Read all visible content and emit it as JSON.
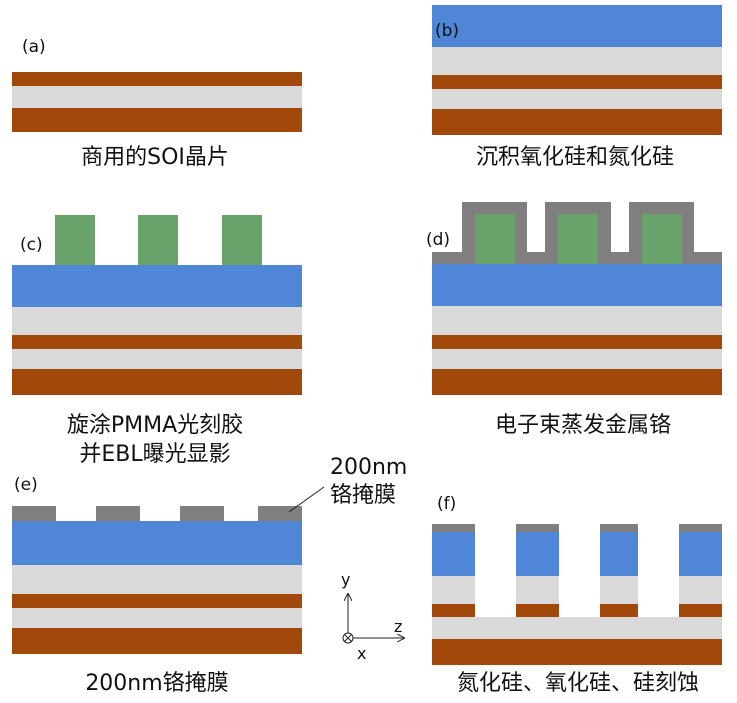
{
  "colors": {
    "silicon": "#a0490b",
    "oxide": "#d9d9d9",
    "nitride": "#4f87d6",
    "resist": "#69a26b",
    "chromium": "#7f7f7f"
  },
  "panels": [
    {
      "id": "a",
      "label": "(a)",
      "caption": [
        "商用的SOI晶片"
      ]
    },
    {
      "id": "b",
      "label": "(b)",
      "caption": [
        "沉积氧化硅和氮化硅"
      ]
    },
    {
      "id": "c",
      "label": "(c)",
      "caption": [
        "旋涂PMMA光刻胶",
        "并EBL曝光显影"
      ]
    },
    {
      "id": "d",
      "label": "(d)",
      "caption": [
        "电子束蒸发金属铬"
      ]
    },
    {
      "id": "e",
      "label": "(e)",
      "caption": [
        "200nm铬掩膜"
      ]
    },
    {
      "id": "f",
      "label": "(f)",
      "caption": [
        "氮化硅、氧化硅、硅刻蚀"
      ]
    }
  ],
  "annotation": {
    "line1": "200nm",
    "line2": "铬掩膜"
  },
  "axes": {
    "y": "y",
    "z": "z",
    "x": "x"
  }
}
